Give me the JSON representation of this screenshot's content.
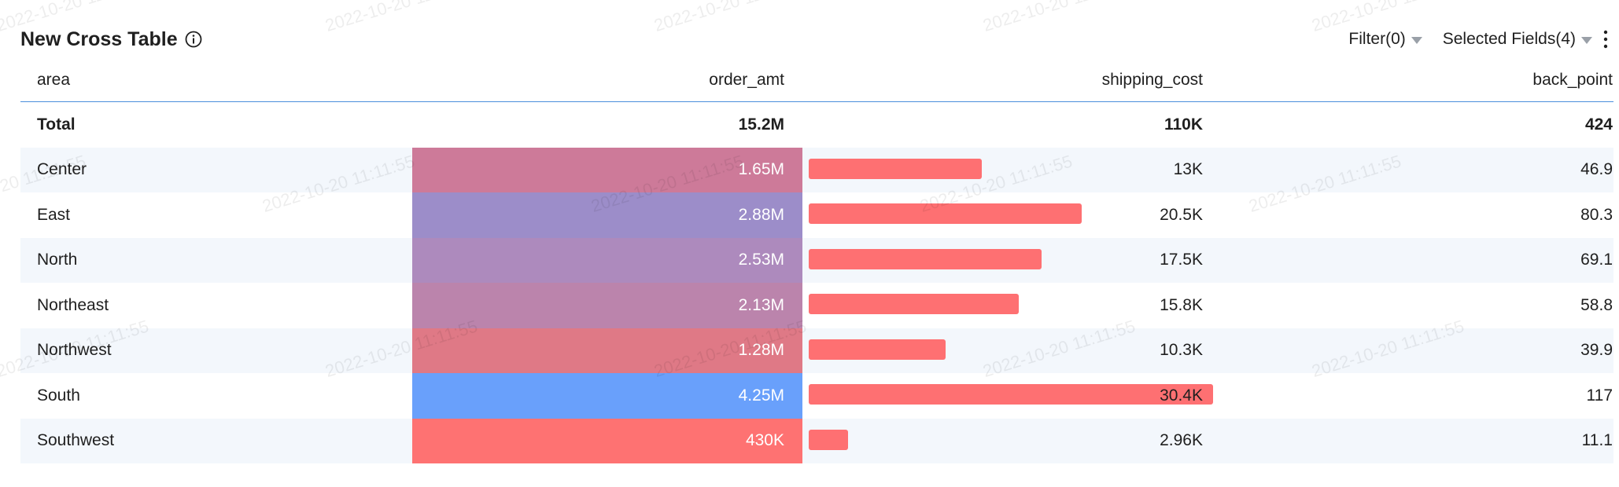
{
  "header": {
    "title": "New Cross Table",
    "filter_label": "Filter(0)",
    "fields_label": "Selected Fields(4)"
  },
  "watermark": "2022-10-20 11:11:55",
  "columns": {
    "area": "area",
    "order_amt": "order_amt",
    "shipping_cost": "shipping_cost",
    "back_point": "back_point"
  },
  "total": {
    "label": "Total",
    "order_amt": "15.2M",
    "shipping_cost": "110K",
    "back_point": "424"
  },
  "rows": [
    {
      "area": "Center",
      "order_amt": "1.65M",
      "order_value": 1.65,
      "shipping_cost": "13K",
      "shipping_value": 13.0,
      "back_point": "46.9",
      "color": "#cd7a99"
    },
    {
      "area": "East",
      "order_amt": "2.88M",
      "order_value": 2.88,
      "shipping_cost": "20.5K",
      "shipping_value": 20.5,
      "back_point": "80.3",
      "color": "#9c8dc9"
    },
    {
      "area": "North",
      "order_amt": "2.53M",
      "order_value": 2.53,
      "shipping_cost": "17.5K",
      "shipping_value": 17.5,
      "back_point": "69.1",
      "color": "#ad8abd"
    },
    {
      "area": "Northeast",
      "order_amt": "2.13M",
      "order_value": 2.13,
      "shipping_cost": "15.8K",
      "shipping_value": 15.8,
      "back_point": "58.8",
      "color": "#bb84ac"
    },
    {
      "area": "Northwest",
      "order_amt": "1.28M",
      "order_value": 1.28,
      "shipping_cost": "10.3K",
      "shipping_value": 10.3,
      "back_point": "39.9",
      "color": "#df7986"
    },
    {
      "area": "South",
      "order_amt": "4.25M",
      "order_value": 4.25,
      "shipping_cost": "30.4K",
      "shipping_value": 30.4,
      "back_point": "117",
      "color": "#69a0fb"
    },
    {
      "area": "Southwest",
      "order_amt": "430K",
      "order_value": 0.43,
      "shipping_cost": "2.96K",
      "shipping_value": 2.96,
      "back_point": "11.1",
      "color": "#fe7272"
    }
  ],
  "colors": {
    "shipping_bar": "#fe7072",
    "header_rule": "#4a8fdc",
    "alt_row": "#f3f7fc"
  }
}
